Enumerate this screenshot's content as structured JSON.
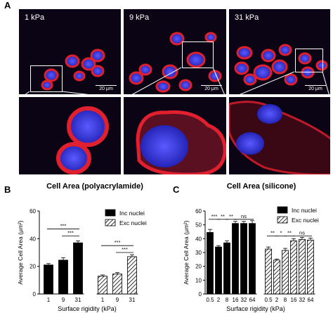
{
  "panels": {
    "a_letter": "A",
    "b_letter": "B",
    "c_letter": "C"
  },
  "micrographs": {
    "labels": [
      "1 kPa",
      "9 kPa",
      "31 kPa"
    ],
    "scale_label": "20 μm"
  },
  "colors": {
    "membrane": "#e0202e",
    "nucleus": "#3a3ad8",
    "background": "#0a0414"
  },
  "chart_data": [
    {
      "type": "bar",
      "title": "Cell Area (polyacrylamide)",
      "xlabel": "Surface rigidity (kPa)",
      "ylabel": "Average Cell Area (μm²)",
      "ylim": [
        0,
        60
      ],
      "yticks": [
        0,
        20,
        40,
        60
      ],
      "legend_position": "top-right",
      "series": [
        {
          "name": "Inc nuclei",
          "categories": [
            "1",
            "9",
            "31"
          ],
          "values": [
            21,
            24.5,
            37
          ],
          "errors": [
            1.0,
            1.8,
            1.4
          ],
          "fill": "solid"
        },
        {
          "name": "Exc nuclei",
          "categories": [
            "1",
            "9",
            "31"
          ],
          "values": [
            13,
            14.5,
            27
          ],
          "errors": [
            0.8,
            1.0,
            1.4
          ],
          "fill": "hatched"
        }
      ],
      "significance": [
        {
          "series": 0,
          "from": 0,
          "to": 2,
          "label": "***",
          "level": 47
        },
        {
          "series": 0,
          "from": 1,
          "to": 2,
          "label": "***",
          "level": 42
        },
        {
          "series": 1,
          "from": 0,
          "to": 2,
          "label": "***",
          "level": 35
        },
        {
          "series": 1,
          "from": 1,
          "to": 2,
          "label": "***",
          "level": 30
        }
      ]
    },
    {
      "type": "bar",
      "title": "Cell Area (silicone)",
      "xlabel": "Surface rigidity (kPa)",
      "ylabel": "Average Cell Area (μm²)",
      "ylim": [
        0,
        60
      ],
      "yticks": [
        0,
        10,
        20,
        30,
        40,
        50,
        60
      ],
      "legend_position": "top-right",
      "series": [
        {
          "name": "Inc nuclei",
          "categories": [
            "0.5",
            "2",
            "8",
            "16",
            "32",
            "64"
          ],
          "values": [
            44.5,
            34,
            37,
            51,
            51,
            51
          ],
          "errors": [
            2.2,
            1.0,
            1.5,
            1.5,
            1.5,
            2.0
          ],
          "fill": "solid"
        },
        {
          "name": "Exc nuclei",
          "categories": [
            "0.5",
            "2",
            "8",
            "16",
            "32",
            "64"
          ],
          "values": [
            32.5,
            24.5,
            31.5,
            38.5,
            39.5,
            39
          ],
          "errors": [
            1.5,
            0.8,
            1.5,
            1.5,
            1.5,
            1.5
          ],
          "fill": "hatched"
        }
      ],
      "significance": [
        {
          "series": 0,
          "from": 0,
          "to": 1,
          "label": "***",
          "level": 54
        },
        {
          "series": 0,
          "from": 1,
          "to": 2,
          "label": "**",
          "level": 54
        },
        {
          "series": 0,
          "from": 2,
          "to": 3,
          "label": "**",
          "level": 54
        },
        {
          "series": 0,
          "from": 3,
          "to": 5,
          "label": "ns",
          "level": 54
        },
        {
          "series": 1,
          "from": 0,
          "to": 1,
          "label": "**",
          "level": 42
        },
        {
          "series": 1,
          "from": 1,
          "to": 2,
          "label": "*",
          "level": 42
        },
        {
          "series": 1,
          "from": 2,
          "to": 3,
          "label": "**",
          "level": 42
        },
        {
          "series": 1,
          "from": 3,
          "to": 5,
          "label": "ns",
          "level": 42
        }
      ]
    }
  ]
}
